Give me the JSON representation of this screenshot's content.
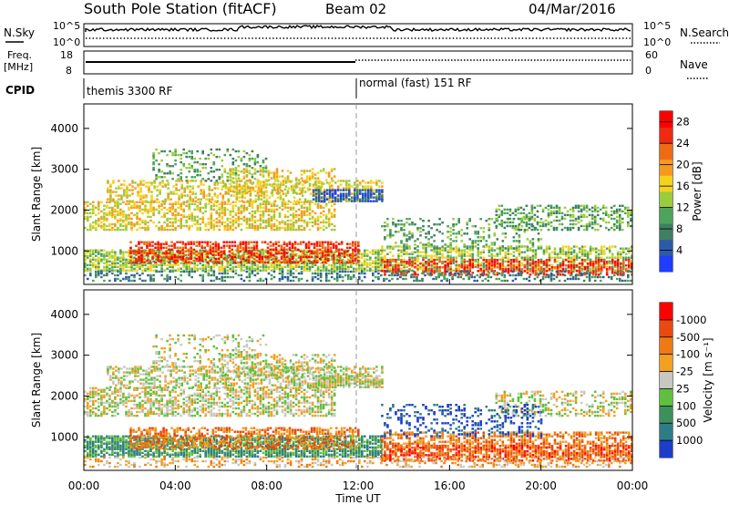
{
  "header": {
    "title": "South Pole Station (fitACF)",
    "beam": "Beam 02",
    "date": "04/Mar/2016"
  },
  "top_panels": {
    "nsky_label": "N.Sky",
    "nsearch_label": "N.Search",
    "freq_label": "Freq.",
    "freq_unit": "[MHz]",
    "nave_label": "Nave",
    "cpid_label": "CPID",
    "nsky_ticks": [
      "10^5",
      "10^0"
    ],
    "nsearch_ticks": [
      "10^5",
      "10^0"
    ],
    "freq_ticks": [
      "18",
      "8"
    ],
    "nave_ticks": [
      "60",
      "0"
    ],
    "cpid_segments": [
      {
        "label": "themis 3300 RF",
        "start_hour": 0
      },
      {
        "label": "normal (fast) 151 RF",
        "start_hour": 12
      }
    ]
  },
  "chart_data": [
    {
      "type": "heatmap",
      "name": "power",
      "ylabel": "Slant Range [km]",
      "yticks": [
        1000,
        2000,
        3000,
        4000
      ],
      "ylim": [
        180,
        4600
      ],
      "xlim": [
        0,
        24
      ],
      "colorbar_label": "Power [dB]",
      "colorbar_ticks": [
        4,
        8,
        12,
        16,
        20,
        24,
        28
      ],
      "colorbar_range": [
        0,
        30
      ],
      "colors": [
        "#1f3cff",
        "#2c5aa8",
        "#3f7f62",
        "#4da35a",
        "#9acc3c",
        "#f4d21e",
        "#f59a1e",
        "#f06a14",
        "#ee2a10",
        "#ff0000"
      ]
    },
    {
      "type": "heatmap",
      "name": "velocity",
      "ylabel": "Slant Range [km]",
      "yticks": [
        1000,
        2000,
        3000,
        4000
      ],
      "ylim": [
        180,
        4600
      ],
      "xlim": [
        0,
        24
      ],
      "xticks": [
        "00:00",
        "04:00",
        "08:00",
        "12:00",
        "16:00",
        "20:00",
        "00:00"
      ],
      "xlabel": "Time UT",
      "colorbar_label": "Velocity [m s⁻¹]",
      "colorbar_ticks": [
        "1000",
        "500",
        "100",
        "25",
        "-25",
        "-100",
        "-500",
        "-1000"
      ],
      "colors": [
        "#1c3ec8",
        "#2d7d86",
        "#3d8f5c",
        "#5fc040",
        "#c8c8c2",
        "#f2a020",
        "#ee7a14",
        "#e84a10",
        "#ff0000"
      ]
    }
  ]
}
